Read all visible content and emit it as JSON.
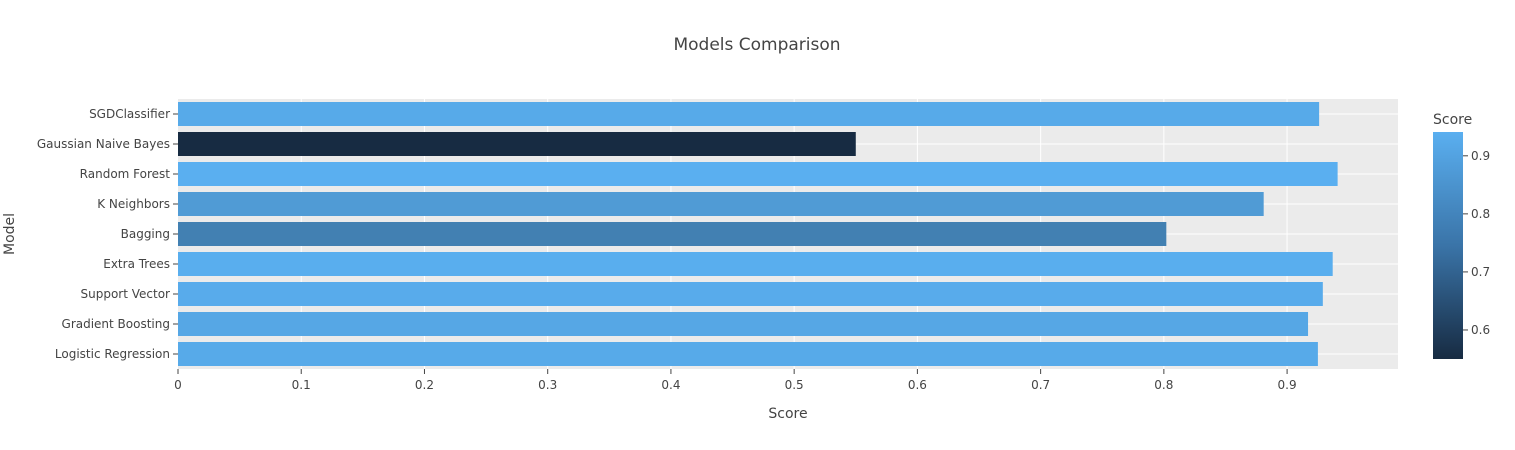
{
  "chart_data": {
    "type": "bar",
    "orientation": "horizontal",
    "title": "Models Comparison",
    "xlabel": "Score",
    "ylabel": "Model",
    "categories": [
      "Logistic Regression",
      "Gradient Boosting",
      "Support Vector",
      "Extra Trees",
      "Bagging",
      "K Neighbors",
      "Random Forest",
      "Gaussian Naive Bayes",
      "SGDClassifier"
    ],
    "values": [
      0.925,
      0.917,
      0.929,
      0.937,
      0.802,
      0.881,
      0.941,
      0.55,
      0.926
    ],
    "xlim": [
      0,
      0.99
    ],
    "x_ticks": [
      "0",
      "0.1",
      "0.2",
      "0.3",
      "0.4",
      "0.5",
      "0.6",
      "0.7",
      "0.8",
      "0.9"
    ],
    "grid": true,
    "colorbar": {
      "title": "Score",
      "range": [
        0.55,
        0.941
      ],
      "ticks": [
        "0.6",
        "0.7",
        "0.8",
        "0.9"
      ],
      "color_low": "#172b42",
      "color_high": "#5aaff0"
    }
  }
}
